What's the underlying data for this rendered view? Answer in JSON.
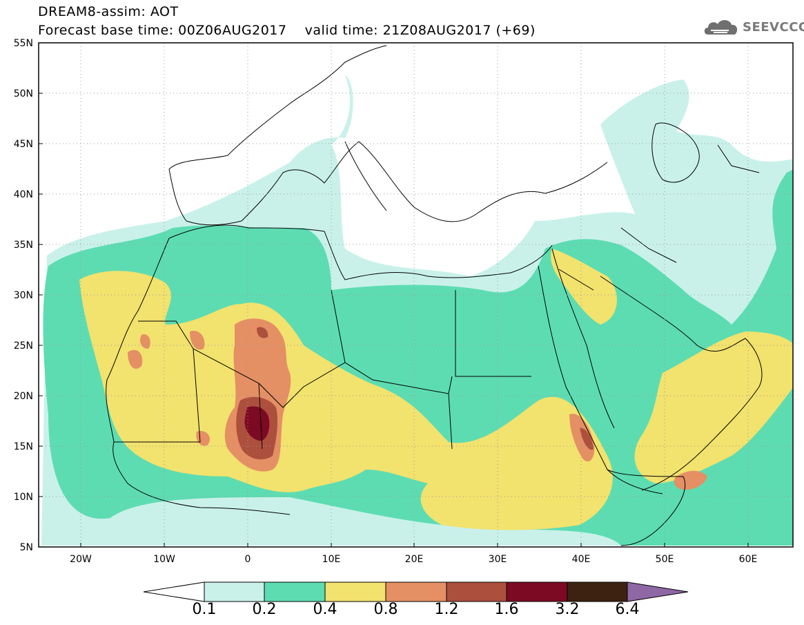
{
  "header": {
    "title_line1": "DREAM8-assim: AOT",
    "forecast_base": "Forecast base time: 00Z06AUG2017",
    "valid_time": "valid time: 21Z08AUG2017 (+69)"
  },
  "logo": {
    "text": "SEEVCCC",
    "icon": "cloud-icon",
    "color": "#6f6f6f"
  },
  "map": {
    "lon_range": [
      -25,
      65
    ],
    "lat_range": [
      5,
      55
    ],
    "y_ticks": [
      "55N",
      "50N",
      "45N",
      "40N",
      "35N",
      "30N",
      "25N",
      "20N",
      "15N",
      "10N",
      "5N"
    ],
    "x_ticks": [
      "20W",
      "10W",
      "0",
      "10E",
      "20E",
      "30E",
      "40E",
      "50E",
      "60E"
    ],
    "grid": "dotted",
    "coastlines": "shown",
    "borders": "shown"
  },
  "colorbar": {
    "labels": [
      "0.1",
      "0.2",
      "0.4",
      "0.8",
      "1.2",
      "1.6",
      "3.2",
      "6.4"
    ],
    "colors": [
      "#c9f1ea",
      "#5ddcb2",
      "#f2e26e",
      "#e58f64",
      "#ad4f3d",
      "#7c0a23",
      "#3e2211",
      "#8f67a5"
    ],
    "under_color": "#ffffff",
    "over_color": "#8f67a5"
  }
}
